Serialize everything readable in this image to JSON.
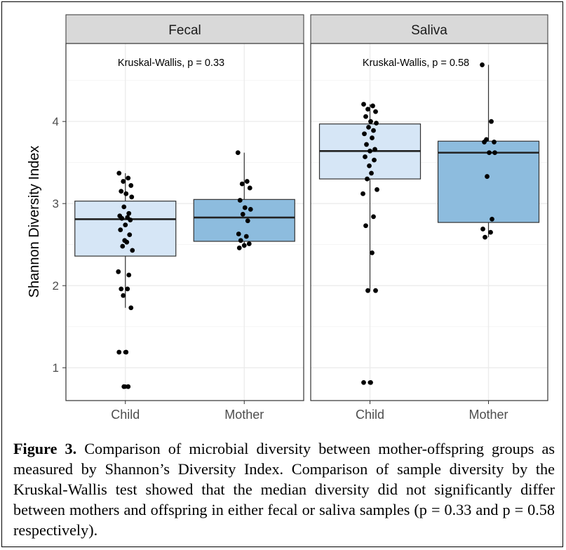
{
  "chart_data": {
    "type": "box",
    "ylabel": "Shannon Diversity Index",
    "ylim": [
      0.6,
      4.95
    ],
    "yticks": [
      1,
      2,
      3,
      4
    ],
    "grid": true,
    "colors": {
      "Child": "#d6e6f6",
      "Mother": "#8dbcde",
      "strip": "#d9d9d9",
      "grid": "#ebebeb"
    },
    "panels": [
      {
        "title": "Fecal",
        "annotation": "Kruskal-Wallis, p = 0.33",
        "categories": [
          "Child",
          "Mother"
        ],
        "boxes": [
          {
            "category": "Child",
            "whisker_low": 1.73,
            "q1": 2.36,
            "median": 2.81,
            "q3": 3.03,
            "whisker_high": 3.37,
            "outliers": [
              1.19,
              1.19,
              0.77,
              0.77
            ],
            "points": [
              3.37,
              3.31,
              3.27,
              3.22,
              3.15,
              3.12,
              3.08,
              2.96,
              2.88,
              2.85,
              2.83,
              2.82,
              2.8,
              2.74,
              2.68,
              2.62,
              2.55,
              2.53,
              2.48,
              2.43,
              2.17,
              2.13,
              1.96,
              1.96,
              1.88,
              1.73,
              1.19,
              1.19,
              0.77,
              0.77
            ]
          },
          {
            "category": "Mother",
            "whisker_low": 2.46,
            "q1": 2.54,
            "median": 2.83,
            "q3": 3.05,
            "whisker_high": 3.62,
            "outliers": [],
            "points": [
              3.62,
              3.27,
              3.24,
              3.19,
              3.04,
              2.95,
              2.93,
              2.87,
              2.79,
              2.63,
              2.6,
              2.55,
              2.51,
              2.49,
              2.46
            ]
          }
        ]
      },
      {
        "title": "Saliva",
        "annotation": "Kruskal-Wallis, p = 0.58",
        "categories": [
          "Child",
          "Mother"
        ],
        "boxes": [
          {
            "category": "Child",
            "whisker_low": 1.94,
            "q1": 3.3,
            "median": 3.64,
            "q3": 3.97,
            "whisker_high": 4.21,
            "outliers": [
              0.82,
              0.82
            ],
            "points": [
              4.21,
              4.19,
              4.15,
              4.12,
              4.06,
              4.0,
              3.98,
              3.93,
              3.89,
              3.85,
              3.8,
              3.72,
              3.66,
              3.64,
              3.57,
              3.53,
              3.46,
              3.37,
              3.3,
              3.17,
              3.12,
              2.84,
              2.73,
              2.4,
              1.94,
              1.94,
              0.82,
              0.82
            ]
          },
          {
            "category": "Mother",
            "whisker_low": 2.59,
            "q1": 2.77,
            "median": 3.62,
            "q3": 3.76,
            "whisker_high": 4.69,
            "outliers": [],
            "points": [
              4.69,
              4.0,
              3.78,
              3.75,
              3.75,
              3.62,
              3.62,
              3.33,
              2.81,
              2.69,
              2.65,
              2.59
            ]
          }
        ]
      }
    ]
  },
  "caption": {
    "label": "Figure 3.",
    "text": " Comparison of microbial diversity between mother-offspring groups as measured by Shannon’s Diversity Index. Comparison of sample diversity by the Kruskal-Wallis test showed that the median diversity did not significantly differ between mothers and offspring in either fecal or saliva samples (p = 0.33 and p = 0.58 respectively)."
  }
}
